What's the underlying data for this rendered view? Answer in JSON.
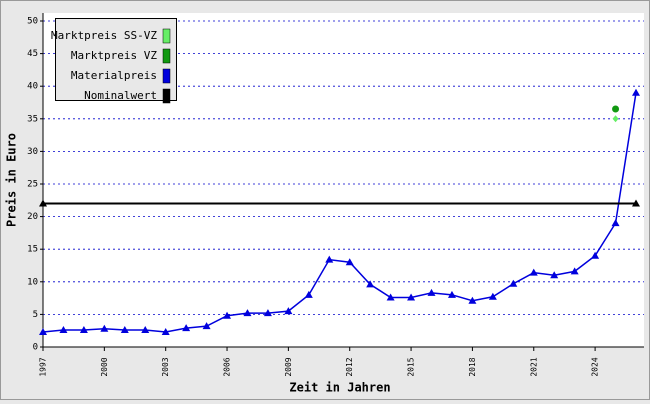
{
  "chart_data": {
    "type": "line",
    "x_label": "Zeit in Jahren",
    "y_label": "Preis in Euro",
    "x": [
      1997,
      1998,
      1999,
      2000,
      2001,
      2002,
      2003,
      2004,
      2005,
      2006,
      2007,
      2008,
      2009,
      2010,
      2011,
      2012,
      2013,
      2014,
      2015,
      2016,
      2017,
      2018,
      2019,
      2020,
      2021,
      2022,
      2023,
      2024,
      2025,
      2026
    ],
    "series": [
      {
        "name": "Marktpreis SS-VZ",
        "color": "#66ee66",
        "marker": "diamond",
        "line": false,
        "x": [
          2025
        ],
        "values": [
          35
        ]
      },
      {
        "name": "Marktpreis VZ",
        "color": "#119911",
        "marker": "circle",
        "line": false,
        "x": [
          2025
        ],
        "values": [
          36.5
        ]
      },
      {
        "name": "Materialpreis",
        "color": "#0000dd",
        "marker": "triangle",
        "line": true,
        "values": [
          2.3,
          2.6,
          2.6,
          2.8,
          2.6,
          2.6,
          2.3,
          2.9,
          3.2,
          4.8,
          5.2,
          5.2,
          5.5,
          8.0,
          13.4,
          13.0,
          9.6,
          7.6,
          7.6,
          8.3,
          8.0,
          7.1,
          7.7,
          9.7,
          11.4,
          11.0,
          11.6,
          14.0,
          19.0,
          39.0
        ]
      },
      {
        "name": "Nominalwert",
        "color": "#000000",
        "marker": "triangle",
        "line": true,
        "x": [
          1997,
          2026
        ],
        "values": [
          22,
          22
        ]
      }
    ],
    "xlim": [
      1997,
      2026
    ],
    "xticks": [
      1997,
      2000,
      2003,
      2006,
      2009,
      2012,
      2015,
      2018,
      2021,
      2024
    ],
    "ylim": [
      0,
      50
    ],
    "yticks": [
      0,
      5,
      10,
      15,
      20,
      25,
      30,
      35,
      40,
      45,
      50
    ],
    "grid": true,
    "legend": "top-left"
  }
}
